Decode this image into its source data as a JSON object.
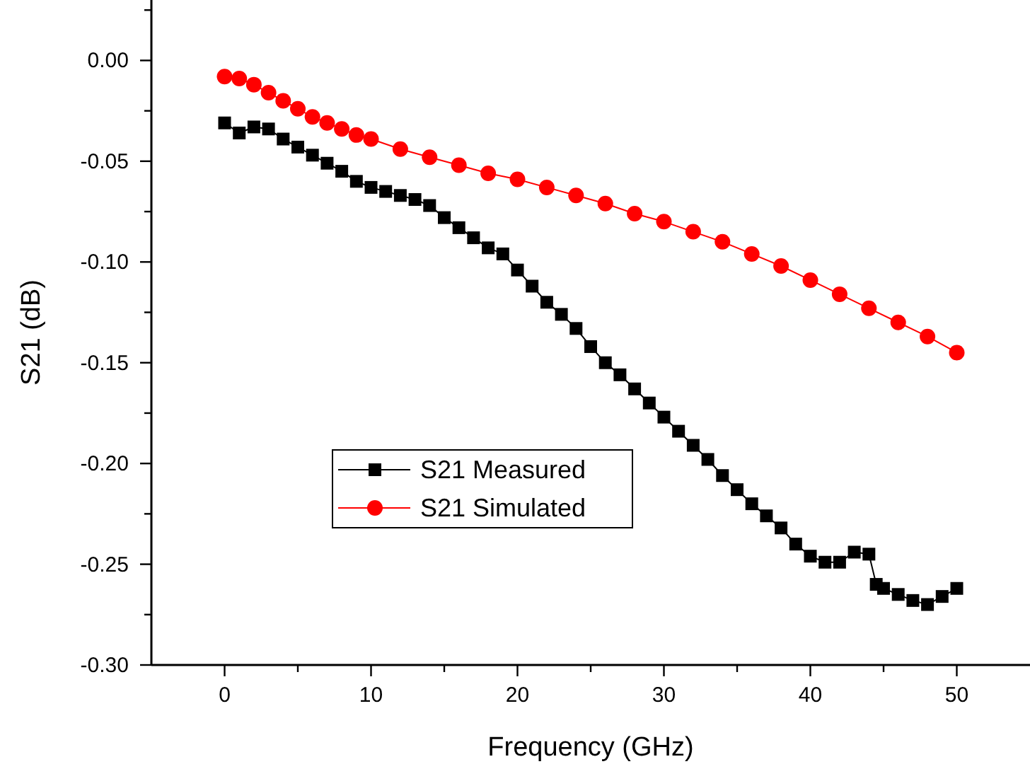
{
  "chart_data": {
    "type": "line",
    "xlabel": "Frequency (GHz)",
    "ylabel": "S21 (dB)",
    "xlim": [
      -5,
      55
    ],
    "ylim": [
      -0.3,
      0.03
    ],
    "xticks": [
      0,
      {
        "value": 5,
        "label": null
      },
      10,
      {
        "value": 15,
        "label": null
      },
      20,
      {
        "value": 25,
        "label": null
      },
      30,
      {
        "value": 35,
        "label": null
      },
      40,
      {
        "value": 45,
        "label": null
      },
      50
    ],
    "yticks": [
      {
        "value": -0.3,
        "label": "-0.30"
      },
      {
        "value": -0.275,
        "label": null
      },
      {
        "value": -0.25,
        "label": "-0.25"
      },
      {
        "value": -0.225,
        "label": null
      },
      {
        "value": -0.2,
        "label": "-0.20"
      },
      {
        "value": -0.175,
        "label": null
      },
      {
        "value": -0.15,
        "label": "-0.15"
      },
      {
        "value": -0.125,
        "label": null
      },
      {
        "value": -0.1,
        "label": "-0.10"
      },
      {
        "value": -0.075,
        "label": null
      },
      {
        "value": -0.05,
        "label": "-0.05"
      },
      {
        "value": -0.025,
        "label": null
      },
      {
        "value": 0,
        "label": "0.00"
      },
      {
        "value": 0.025,
        "label": null
      }
    ],
    "grid": false,
    "legend": "bottom left",
    "series": [
      {
        "name": "S21 Measured",
        "color": "#000000",
        "marker": "square",
        "x": [
          0,
          1,
          2,
          3,
          4,
          5,
          6,
          7,
          8,
          9,
          10,
          11,
          12,
          13,
          14,
          15,
          16,
          17,
          18,
          19,
          20,
          21,
          22,
          23,
          24,
          25,
          26,
          27,
          28,
          29,
          30,
          31,
          32,
          33,
          34,
          35,
          36,
          37,
          38,
          39,
          40,
          41,
          42,
          43,
          44,
          44.5,
          45,
          46,
          47,
          48,
          49,
          50
        ],
        "values": [
          -0.031,
          -0.036,
          -0.033,
          -0.034,
          -0.039,
          -0.043,
          -0.047,
          -0.051,
          -0.055,
          -0.06,
          -0.063,
          -0.065,
          -0.067,
          -0.069,
          -0.072,
          -0.078,
          -0.083,
          -0.088,
          -0.093,
          -0.096,
          -0.104,
          -0.112,
          -0.12,
          -0.126,
          -0.133,
          -0.142,
          -0.15,
          -0.156,
          -0.163,
          -0.17,
          -0.177,
          -0.184,
          -0.191,
          -0.198,
          -0.206,
          -0.213,
          -0.22,
          -0.226,
          -0.232,
          -0.24,
          -0.246,
          -0.249,
          -0.249,
          -0.244,
          -0.245,
          -0.26,
          -0.262,
          -0.265,
          -0.268,
          -0.27,
          -0.266,
          -0.262
        ]
      },
      {
        "name": "S21 Simulated",
        "color": "#ff0000",
        "marker": "circle",
        "x": [
          0,
          1,
          2,
          3,
          4,
          5,
          6,
          7,
          8,
          9,
          10,
          12,
          14,
          16,
          18,
          20,
          22,
          24,
          26,
          28,
          30,
          32,
          34,
          36,
          38,
          40,
          42,
          44,
          46,
          48,
          50
        ],
        "values": [
          -0.008,
          -0.009,
          -0.012,
          -0.016,
          -0.02,
          -0.024,
          -0.028,
          -0.031,
          -0.034,
          -0.037,
          -0.039,
          -0.044,
          -0.048,
          -0.052,
          -0.056,
          -0.059,
          -0.063,
          -0.067,
          -0.071,
          -0.076,
          -0.08,
          -0.085,
          -0.09,
          -0.096,
          -0.102,
          -0.109,
          -0.116,
          -0.123,
          -0.13,
          -0.137,
          -0.145
        ]
      }
    ]
  }
}
